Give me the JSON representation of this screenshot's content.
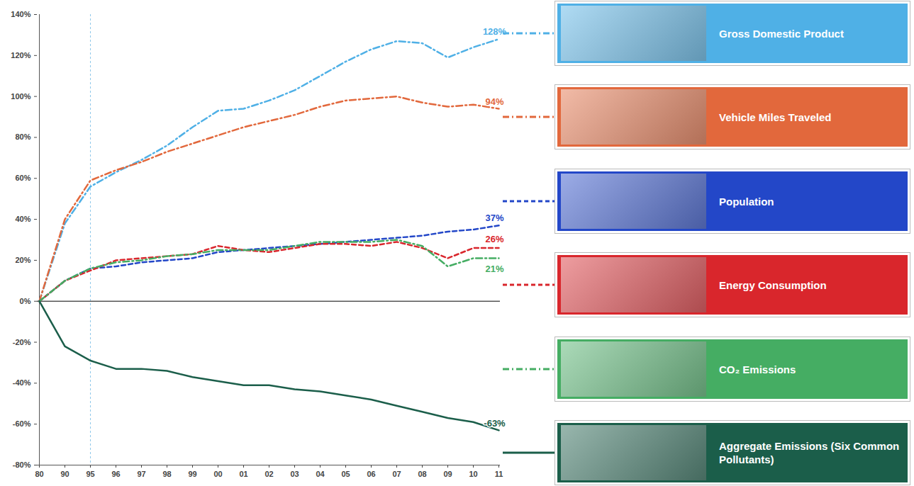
{
  "chart_data": {
    "type": "line",
    "categories": [
      "80",
      "90",
      "95",
      "96",
      "97",
      "98",
      "99",
      "00",
      "01",
      "02",
      "03",
      "04",
      "05",
      "06",
      "07",
      "08",
      "09",
      "10",
      "11"
    ],
    "ylim": [
      -80,
      140
    ],
    "yticks": [
      {
        "value": -80,
        "label": "-80%"
      },
      {
        "value": -60,
        "label": "-60%"
      },
      {
        "value": -40,
        "label": "-40%"
      },
      {
        "value": -20,
        "label": "-20%"
      },
      {
        "value": 0,
        "label": "0%"
      },
      {
        "value": 20,
        "label": "20%"
      },
      {
        "value": 40,
        "label": "40%"
      },
      {
        "value": 60,
        "label": "60%"
      },
      {
        "value": 80,
        "label": "80%"
      },
      {
        "value": 100,
        "label": "100%"
      },
      {
        "value": 120,
        "label": "120%"
      },
      {
        "value": 140,
        "label": "140%"
      }
    ],
    "grid": false,
    "legend": "right",
    "reference_line_x": "95",
    "series": [
      {
        "name": "Gross Domestic Product",
        "color": "#4fb0e6",
        "line_style": "dashdot",
        "values": [
          0,
          38,
          56,
          63,
          69,
          76,
          85,
          93,
          94,
          98,
          103,
          110,
          117,
          123,
          127,
          126,
          119,
          124,
          128
        ],
        "value_labels": [
          null,
          null,
          null,
          null,
          null,
          null,
          null,
          null,
          null,
          null,
          null,
          null,
          null,
          null,
          null,
          null,
          null,
          null,
          "128%"
        ]
      },
      {
        "name": "Vehicle Miles Traveled",
        "color": "#e2683c",
        "line_style": "dashdot",
        "values": [
          0,
          40,
          59,
          64,
          68,
          73,
          77,
          81,
          85,
          88,
          91,
          95,
          98,
          99,
          100,
          97,
          95,
          96,
          94
        ],
        "value_labels": [
          null,
          null,
          null,
          null,
          null,
          null,
          null,
          null,
          null,
          null,
          null,
          null,
          null,
          null,
          null,
          null,
          null,
          null,
          "94%"
        ]
      },
      {
        "name": "Population",
        "color": "#2347c8",
        "line_style": "dashed",
        "values": [
          0,
          10,
          16,
          17,
          19,
          20,
          21,
          24,
          25,
          26,
          27,
          28,
          29,
          30,
          31,
          32,
          34,
          35,
          37
        ],
        "value_labels": [
          null,
          null,
          null,
          null,
          null,
          null,
          null,
          null,
          null,
          null,
          null,
          null,
          null,
          null,
          null,
          null,
          null,
          null,
          "37%"
        ]
      },
      {
        "name": "Energy Consumption",
        "color": "#d9262c",
        "line_style": "dashed",
        "values": [
          0,
          10,
          15,
          20,
          21,
          22,
          23,
          27,
          25,
          24,
          26,
          28,
          28,
          27,
          29,
          26,
          21,
          26,
          26
        ],
        "value_labels": [
          null,
          null,
          null,
          null,
          null,
          null,
          null,
          null,
          null,
          null,
          null,
          null,
          null,
          null,
          null,
          null,
          null,
          null,
          "26%"
        ]
      },
      {
        "name": "CO₂ Emissions",
        "color": "#45ad63",
        "line_style": "dashdot",
        "values": [
          0,
          10,
          16,
          19,
          20,
          22,
          23,
          25,
          25,
          25,
          27,
          29,
          29,
          29,
          30,
          27,
          17,
          21,
          21
        ],
        "value_labels": [
          null,
          null,
          null,
          null,
          null,
          null,
          null,
          null,
          null,
          null,
          null,
          null,
          null,
          null,
          null,
          null,
          null,
          null,
          "21%"
        ]
      },
      {
        "name": "Aggregate Emissions (Six Common Pollutants)",
        "color": "#1b5e4a",
        "line_style": "solid",
        "values": [
          0,
          -22,
          -29,
          -33,
          -33,
          -34,
          -37,
          -39,
          -41,
          -41,
          -43,
          -44,
          -46,
          -48,
          -51,
          -54,
          -57,
          -59,
          -63
        ],
        "value_labels": [
          null,
          null,
          null,
          null,
          null,
          null,
          null,
          null,
          null,
          null,
          null,
          null,
          null,
          null,
          null,
          null,
          null,
          null,
          "-63%"
        ]
      }
    ]
  }
}
